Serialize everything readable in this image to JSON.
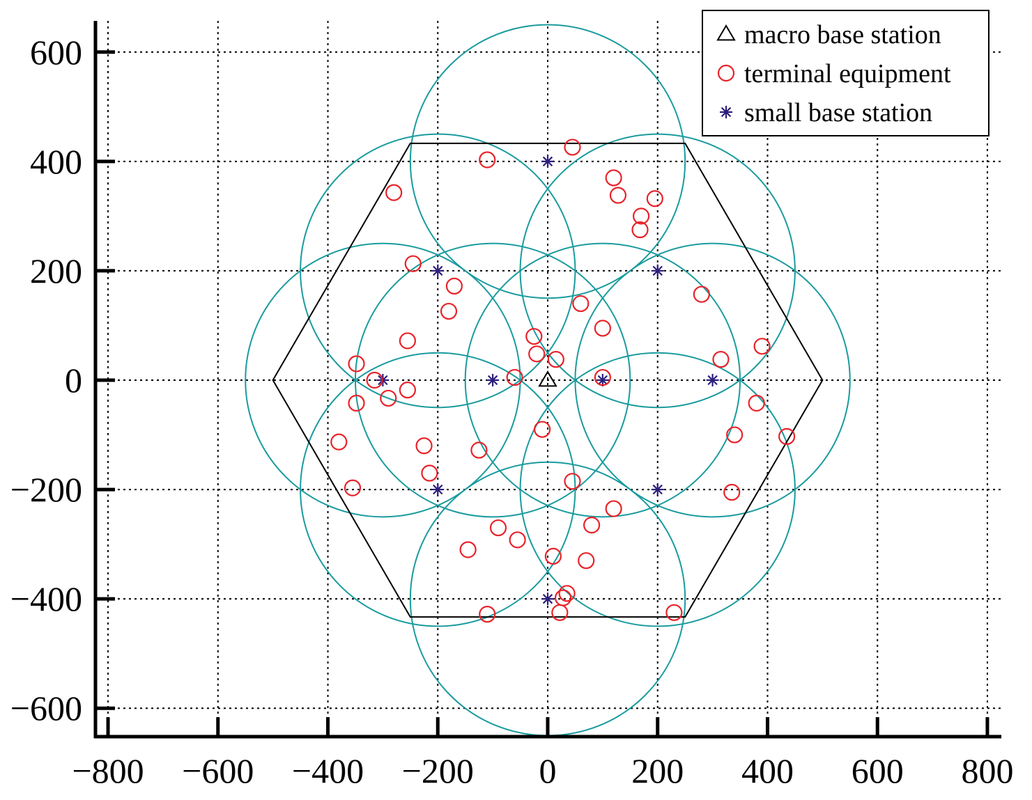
{
  "chart_data": {
    "type": "scatter",
    "title": "",
    "xlabel": "",
    "ylabel": "",
    "xlim": [
      -820,
      830
    ],
    "ylim": [
      -660,
      660
    ],
    "grid": true,
    "grid_style": "dotted",
    "legend_position": "top-right",
    "x_ticks": [
      -800,
      -600,
      -400,
      -200,
      0,
      200,
      400,
      600,
      800
    ],
    "y_ticks": [
      -600,
      -400,
      -200,
      0,
      200,
      400,
      600
    ],
    "x_tick_labels": [
      "−800",
      "−600",
      "−400",
      "−200",
      "0",
      "200",
      "400",
      "600",
      "800"
    ],
    "y_tick_labels": [
      "−600",
      "−400",
      "−200",
      "0",
      "200",
      "400",
      "600"
    ],
    "legend": [
      {
        "label": "macro base station",
        "marker": "triangle",
        "color": "#000000"
      },
      {
        "label": "terminal equipment",
        "marker": "circle",
        "color": "#e8232a"
      },
      {
        "label": "small base station",
        "marker": "star",
        "color": "#2b1f7a"
      }
    ],
    "hexagon": {
      "color": "#000000",
      "vertices": [
        [
          500,
          0
        ],
        [
          250,
          433
        ],
        [
          -250,
          433
        ],
        [
          -500,
          0
        ],
        [
          -250,
          -433
        ],
        [
          250,
          -433
        ]
      ]
    },
    "coverage_circles": {
      "color": "#1a9b9e",
      "radius": 250,
      "centers": [
        [
          0,
          400
        ],
        [
          200,
          200
        ],
        [
          -200,
          200
        ],
        [
          100,
          0
        ],
        [
          -100,
          0
        ],
        [
          300,
          0
        ],
        [
          -300,
          0
        ],
        [
          200,
          -200
        ],
        [
          -200,
          -200
        ],
        [
          0,
          -400
        ]
      ]
    },
    "series": [
      {
        "name": "macro base station",
        "marker": "triangle",
        "color": "#000000",
        "points": [
          [
            0,
            0
          ]
        ]
      },
      {
        "name": "small base station",
        "marker": "star",
        "color": "#2b1f7a",
        "points": [
          [
            0,
            400
          ],
          [
            200,
            200
          ],
          [
            -200,
            200
          ],
          [
            100,
            0
          ],
          [
            -100,
            0
          ],
          [
            300,
            0
          ],
          [
            -300,
            0
          ],
          [
            200,
            -200
          ],
          [
            -200,
            -200
          ],
          [
            0,
            -400
          ]
        ]
      },
      {
        "name": "terminal equipment",
        "marker": "circle",
        "color": "#e8232a",
        "points": [
          [
            -110,
            403
          ],
          [
            45,
            426
          ],
          [
            -280,
            343
          ],
          [
            120,
            370
          ],
          [
            128,
            338
          ],
          [
            170,
            300
          ],
          [
            168,
            275
          ],
          [
            195,
            332
          ],
          [
            -245,
            213
          ],
          [
            -170,
            172
          ],
          [
            -180,
            126
          ],
          [
            280,
            157
          ],
          [
            60,
            140
          ],
          [
            100,
            95
          ],
          [
            -25,
            80
          ],
          [
            -20,
            48
          ],
          [
            15,
            38
          ],
          [
            -255,
            72
          ],
          [
            -348,
            30
          ],
          [
            315,
            38
          ],
          [
            390,
            62
          ],
          [
            -315,
            0
          ],
          [
            -60,
            5
          ],
          [
            100,
            5
          ],
          [
            -290,
            -33
          ],
          [
            -255,
            -18
          ],
          [
            -348,
            -42
          ],
          [
            380,
            -42
          ],
          [
            -380,
            -113
          ],
          [
            -225,
            -120
          ],
          [
            -125,
            -128
          ],
          [
            -10,
            -90
          ],
          [
            340,
            -100
          ],
          [
            435,
            -103
          ],
          [
            -215,
            -170
          ],
          [
            -355,
            -197
          ],
          [
            45,
            -185
          ],
          [
            120,
            -235
          ],
          [
            335,
            -205
          ],
          [
            -90,
            -270
          ],
          [
            80,
            -265
          ],
          [
            -55,
            -292
          ],
          [
            -145,
            -310
          ],
          [
            10,
            -322
          ],
          [
            70,
            -330
          ],
          [
            -110,
            -428
          ],
          [
            35,
            -390
          ],
          [
            28,
            -398
          ],
          [
            22,
            -425
          ],
          [
            230,
            -425
          ]
        ]
      }
    ]
  }
}
